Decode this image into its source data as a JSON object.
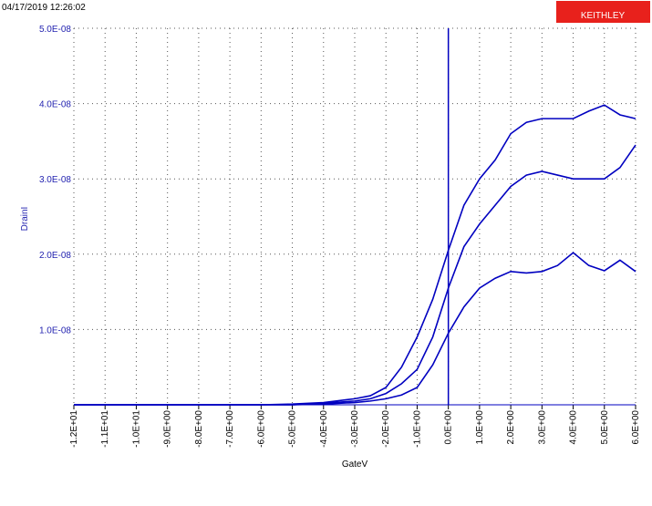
{
  "timestamp": "04/17/2019 12:26:02",
  "logo": "KEITHLEY",
  "chart_data": {
    "type": "line",
    "xlabel": "GateV",
    "ylabel": "DrainI",
    "grid": true,
    "xlim": [
      -12,
      6
    ],
    "ylim": [
      0,
      5e-08
    ],
    "xticks": [
      {
        "value": -12,
        "label": "-1.2E+01"
      },
      {
        "value": -11,
        "label": "-1.1E+01"
      },
      {
        "value": -10,
        "label": "-1.0E+01"
      },
      {
        "value": -9,
        "label": "-9.0E+00"
      },
      {
        "value": -8,
        "label": "-8.0E+00"
      },
      {
        "value": -7,
        "label": "-7.0E+00"
      },
      {
        "value": -6,
        "label": "-6.0E+00"
      },
      {
        "value": -5,
        "label": "-5.0E+00"
      },
      {
        "value": -4,
        "label": "-4.0E+00"
      },
      {
        "value": -3,
        "label": "-3.0E+00"
      },
      {
        "value": -2,
        "label": "-2.0E+00"
      },
      {
        "value": -1,
        "label": "-1.0E+00"
      },
      {
        "value": 0,
        "label": "0.0E+00"
      },
      {
        "value": 1,
        "label": "1.0E+00"
      },
      {
        "value": 2,
        "label": "2.0E+00"
      },
      {
        "value": 3,
        "label": "3.0E+00"
      },
      {
        "value": 4,
        "label": "4.0E+00"
      },
      {
        "value": 5,
        "label": "5.0E+00"
      },
      {
        "value": 6,
        "label": "6.0E+00"
      }
    ],
    "yticks": [
      {
        "value": 1e-08,
        "label": "1.0E-08"
      },
      {
        "value": 2e-08,
        "label": "2.0E-08"
      },
      {
        "value": 3e-08,
        "label": "3.0E-08"
      },
      {
        "value": 4e-08,
        "label": "4.0E-08"
      },
      {
        "value": 5e-08,
        "label": "5.0E-08"
      }
    ],
    "x": [
      -12,
      -10,
      -8,
      -6,
      -5,
      -4,
      -3,
      -2.5,
      -2,
      -1.5,
      -1,
      -0.5,
      0,
      0.5,
      1,
      1.5,
      2,
      2.5,
      3,
      3.5,
      4,
      4.5,
      5,
      5.5,
      6
    ],
    "series": [
      {
        "color": "#0000c0",
        "values": [
          0,
          0,
          0,
          0,
          1e-10,
          3e-10,
          8e-10,
          1.2e-09,
          2.3e-09,
          5e-09,
          9e-09,
          1.4e-08,
          2.05e-08,
          2.65e-08,
          3e-08,
          3.25e-08,
          3.6e-08,
          3.75e-08,
          3.8e-08,
          3.8e-08,
          3.8e-08,
          3.9e-08,
          3.98e-08,
          3.85e-08,
          3.8e-08
        ]
      },
      {
        "color": "#0000c0",
        "values": [
          0,
          0,
          0,
          0,
          0,
          2e-10,
          5e-10,
          8e-10,
          1.5e-09,
          2.8e-09,
          4.7e-09,
          9e-09,
          1.55e-08,
          2.1e-08,
          2.4e-08,
          2.65e-08,
          2.9e-08,
          3.05e-08,
          3.1e-08,
          3.05e-08,
          3e-08,
          3e-08,
          3e-08,
          3.15e-08,
          3.45e-08
        ]
      },
      {
        "color": "#0000c0",
        "values": [
          0,
          0,
          0,
          0,
          0,
          1e-10,
          3e-10,
          5e-10,
          8e-10,
          1.3e-09,
          2.3e-09,
          5.3e-09,
          9.5e-09,
          1.3e-08,
          1.55e-08,
          1.68e-08,
          1.77e-08,
          1.75e-08,
          1.77e-08,
          1.85e-08,
          2.02e-08,
          1.85e-08,
          1.78e-08,
          1.92e-08,
          1.77e-08
        ]
      }
    ]
  }
}
